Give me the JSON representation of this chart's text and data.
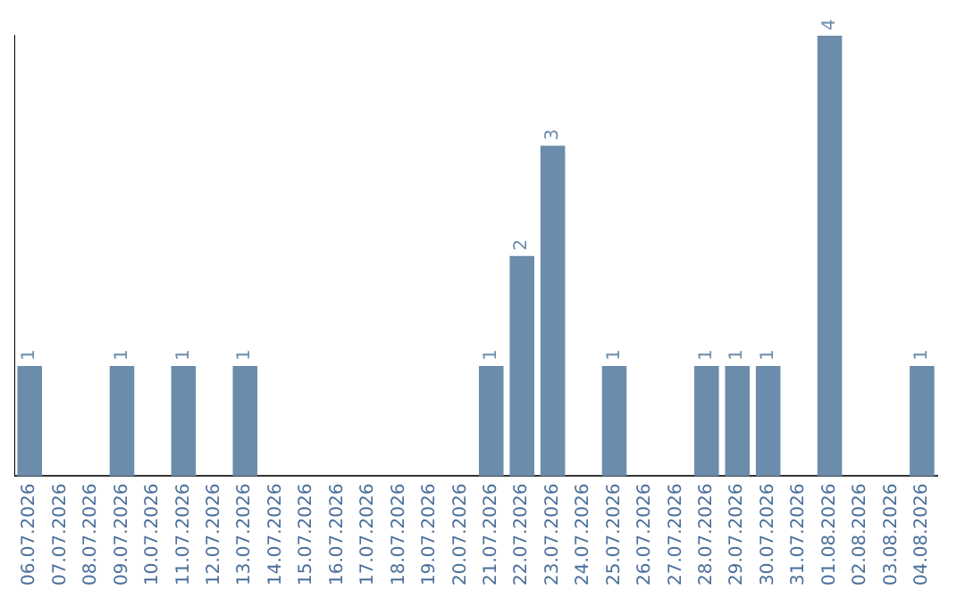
{
  "chart_data": {
    "type": "bar",
    "categories": [
      "06.07.2026",
      "07.07.2026",
      "08.07.2026",
      "09.07.2026",
      "10.07.2026",
      "11.07.2026",
      "12.07.2026",
      "13.07.2026",
      "14.07.2026",
      "15.07.2026",
      "16.07.2026",
      "17.07.2026",
      "18.07.2026",
      "19.07.2026",
      "20.07.2026",
      "21.07.2026",
      "22.07.2026",
      "23.07.2026",
      "24.07.2026",
      "25.07.2026",
      "26.07.2026",
      "27.07.2026",
      "28.07.2026",
      "29.07.2026",
      "30.07.2026",
      "31.07.2026",
      "01.08.2026",
      "02.08.2026",
      "03.08.2026",
      "04.08.2026"
    ],
    "values": [
      1,
      0,
      0,
      1,
      0,
      1,
      0,
      1,
      0,
      0,
      0,
      0,
      0,
      0,
      0,
      1,
      2,
      3,
      0,
      1,
      0,
      0,
      1,
      1,
      1,
      0,
      4,
      0,
      0,
      1
    ],
    "value_labels": [
      "1",
      null,
      null,
      "1",
      null,
      "1",
      null,
      "1",
      null,
      null,
      null,
      null,
      null,
      null,
      null,
      "1",
      "2",
      "3",
      null,
      "1",
      null,
      null,
      "1",
      "1",
      "1",
      null,
      "4",
      null,
      null,
      "1"
    ],
    "color": "#6b8cab",
    "grid": false,
    "legend": false,
    "tick_labels": "x"
  }
}
